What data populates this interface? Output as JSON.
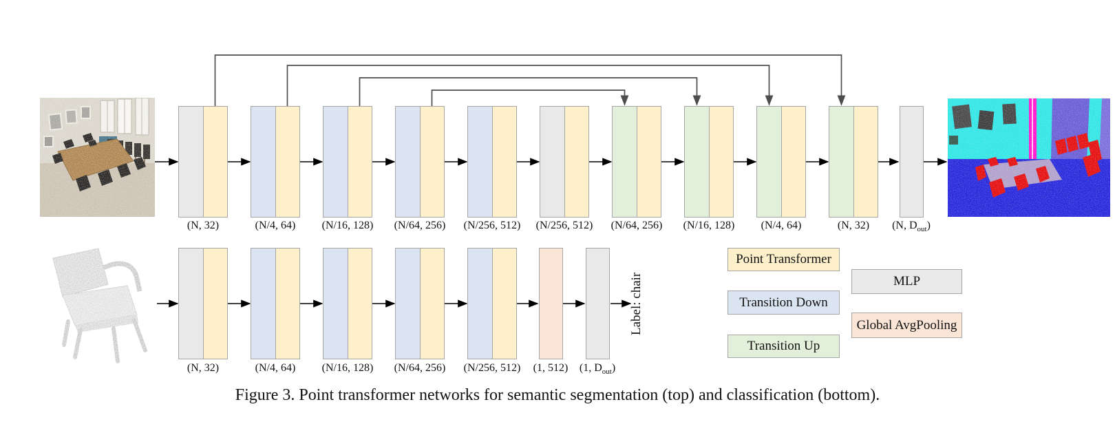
{
  "caption": "Figure 3. Point transformer networks for semantic segmentation (top) and classification (bottom).",
  "classification_output": "Label: chair",
  "colors": {
    "point_transformer": "#fdf0cb",
    "transition_down": "#dbe5f1",
    "transition_up": "#e2efda",
    "mlp": "#e9e9e9",
    "global_avgpooling": "#fbe5d6",
    "block_border": "#a6a6a6",
    "arrow": "#000000",
    "skip_line": "#4d4d4d"
  },
  "legend": {
    "left": [
      {
        "key": "point_transformer",
        "label": "Point Transformer"
      },
      {
        "key": "transition_down",
        "label": "Transition Down"
      },
      {
        "key": "transition_up",
        "label": "Transition Up"
      }
    ],
    "right": [
      {
        "key": "mlp",
        "label": "MLP"
      },
      {
        "key": "global_avgpooling",
        "label": "Global AvgPooling"
      }
    ]
  },
  "top_row": {
    "blocks": [
      {
        "parts": [
          "mlp",
          "point_transformer"
        ],
        "label": {
          "text": "(N, 32)"
        }
      },
      {
        "parts": [
          "transition_down",
          "point_transformer"
        ],
        "label": {
          "text": "(N/4, 64)"
        }
      },
      {
        "parts": [
          "transition_down",
          "point_transformer"
        ],
        "label": {
          "text": "(N/16, 128)"
        }
      },
      {
        "parts": [
          "transition_down",
          "point_transformer"
        ],
        "label": {
          "text": "(N/64, 256)"
        }
      },
      {
        "parts": [
          "transition_down",
          "point_transformer"
        ],
        "label": {
          "text": "(N/256, 512)"
        }
      },
      {
        "parts": [
          "mlp",
          "point_transformer"
        ],
        "label": {
          "text": "(N/256, 512)"
        }
      },
      {
        "parts": [
          "transition_up",
          "point_transformer"
        ],
        "label": {
          "text": "(N/64, 256)"
        }
      },
      {
        "parts": [
          "transition_up",
          "point_transformer"
        ],
        "label": {
          "text": "(N/16, 128)"
        }
      },
      {
        "parts": [
          "transition_up",
          "point_transformer"
        ],
        "label": {
          "text": "(N/4, 64)"
        }
      },
      {
        "parts": [
          "transition_up",
          "point_transformer"
        ],
        "label": {
          "text": "(N, 32)"
        }
      },
      {
        "parts": [
          "mlp"
        ],
        "label": {
          "pre": "(N, D",
          "sub": "out",
          "post": ")"
        }
      }
    ]
  },
  "bottom_row": {
    "blocks": [
      {
        "parts": [
          "mlp",
          "point_transformer"
        ],
        "label": {
          "text": "(N, 32)"
        }
      },
      {
        "parts": [
          "transition_down",
          "point_transformer"
        ],
        "label": {
          "text": "(N/4, 64)"
        }
      },
      {
        "parts": [
          "transition_down",
          "point_transformer"
        ],
        "label": {
          "text": "(N/16, 128)"
        }
      },
      {
        "parts": [
          "transition_down",
          "point_transformer"
        ],
        "label": {
          "text": "(N/64, 256)"
        }
      },
      {
        "parts": [
          "transition_down",
          "point_transformer"
        ],
        "label": {
          "text": "(N/256, 512)"
        }
      },
      {
        "parts": [
          "global_avgpooling"
        ],
        "label": {
          "text": "(1, 512)"
        }
      },
      {
        "parts": [
          "mlp"
        ],
        "label": {
          "pre": "(1, D",
          "sub": "out",
          "post": ")"
        }
      }
    ]
  }
}
